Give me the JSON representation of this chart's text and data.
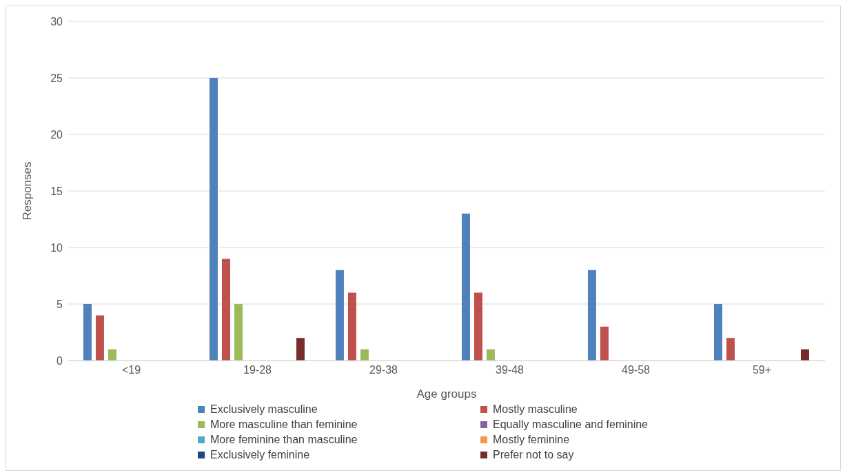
{
  "chart_data": {
    "type": "bar",
    "xlabel": "Age groups",
    "ylabel": "Responses",
    "categories": [
      "<19",
      "19-28",
      "29-38",
      "39-48",
      "49-58",
      "59+"
    ],
    "series": [
      {
        "name": "Exclusively masculine",
        "color": "#4f81bd",
        "values": [
          5,
          25,
          8,
          13,
          8,
          5
        ]
      },
      {
        "name": "Mostly masculine",
        "color": "#c0504d",
        "values": [
          4,
          9,
          6,
          6,
          3,
          2
        ]
      },
      {
        "name": "More masculine than feminine",
        "color": "#9bbb59",
        "values": [
          1,
          5,
          1,
          1,
          0,
          0
        ]
      },
      {
        "name": "Equally masculine and feminine",
        "color": "#8064a2",
        "values": [
          0,
          0,
          0,
          0,
          0,
          0
        ]
      },
      {
        "name": "More feminine than masculine",
        "color": "#4bacc6",
        "values": [
          0,
          0,
          0,
          0,
          0,
          0
        ]
      },
      {
        "name": "Mostly feminine",
        "color": "#f79646",
        "values": [
          0,
          0,
          0,
          0,
          0,
          0
        ]
      },
      {
        "name": "Exclusively feminine",
        "color": "#1f497d",
        "values": [
          0,
          0,
          0,
          0,
          0,
          0
        ]
      },
      {
        "name": "Prefer not to say",
        "color": "#772c2a",
        "values": [
          0,
          2,
          0,
          0,
          0,
          1
        ]
      }
    ],
    "ylim": [
      0,
      30
    ],
    "yticks": [
      0,
      5,
      10,
      15,
      20,
      25,
      30
    ],
    "grid": "y",
    "legend": "bottom"
  }
}
